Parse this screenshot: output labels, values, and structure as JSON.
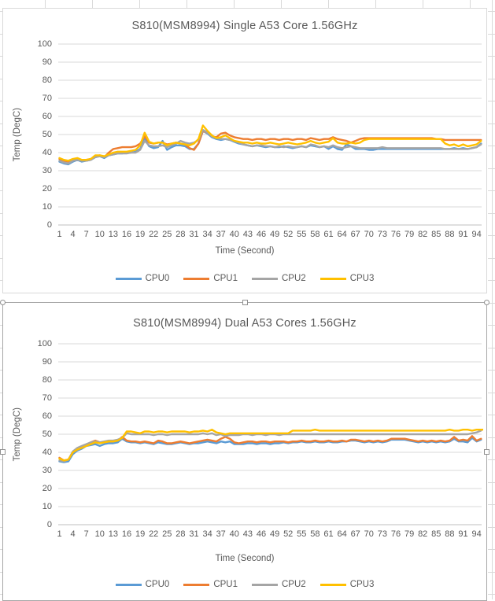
{
  "sheet": {
    "background_color": "#ffffff",
    "gridline_color": "#d9d9d9",
    "chart_border_color": "#d9d9d9",
    "selected_border_color": "#a6a6a6",
    "text_color": "#595959"
  },
  "palette": {
    "cpu0": "#5B9BD5",
    "cpu1": "#ED7D31",
    "cpu2": "#A5A5A5",
    "cpu3": "#FFC000"
  },
  "chart_data": [
    {
      "type": "line",
      "title": "S810(MSM8994) Single A53 Core 1.56GHz",
      "xlabel": "Time (Second)",
      "ylabel": "Temp (DegC)",
      "ylim": [
        0,
        100
      ],
      "ytick_step": 10,
      "ytick_labels": [
        0,
        10,
        20,
        30,
        40,
        50,
        60,
        70,
        80,
        90,
        100
      ],
      "xtick_labels": [
        1,
        4,
        7,
        10,
        13,
        16,
        19,
        22,
        25,
        28,
        31,
        34,
        37,
        40,
        43,
        46,
        49,
        52,
        55,
        58,
        61,
        64,
        67,
        70,
        73,
        76,
        79,
        82,
        85,
        88,
        91,
        94
      ],
      "x_start": 1,
      "x_end": 95,
      "grid": true,
      "legend_position": "bottom",
      "selected": false,
      "series": [
        {
          "name": "CPU0",
          "color": "#5B9BD5",
          "values": [
            35,
            34,
            33.5,
            35,
            36,
            35,
            35.5,
            36,
            37.5,
            38,
            37,
            38.5,
            39,
            39.5,
            39.5,
            40,
            40,
            40.5,
            42,
            47.5,
            43.5,
            42.5,
            43,
            46.5,
            41.5,
            43,
            44,
            44,
            43.5,
            42,
            42,
            45,
            52,
            50.5,
            48.5,
            47.5,
            47,
            47.5,
            47,
            46,
            45,
            44.5,
            44,
            43.5,
            44,
            43.5,
            43,
            43.5,
            43,
            43,
            43.5,
            43,
            42.5,
            43,
            43.5,
            43,
            44,
            43.5,
            43,
            43.5,
            42,
            43.5,
            42,
            41.5,
            44.5,
            43.5,
            42,
            42,
            42,
            41.5,
            41.5,
            42,
            42,
            42,
            42,
            42,
            42,
            42,
            42,
            42,
            42,
            42,
            42,
            42,
            42,
            42,
            42,
            42,
            42.5,
            42,
            42.5,
            42,
            42.5,
            43,
            45
          ]
        },
        {
          "name": "CPU1",
          "color": "#ED7D31",
          "values": [
            36.5,
            35.5,
            35,
            36,
            36.5,
            35.5,
            36,
            36.5,
            38,
            38.5,
            37.5,
            40,
            42,
            42.5,
            43,
            43,
            43,
            43.5,
            45,
            49,
            45.5,
            45,
            45.5,
            45.5,
            44.5,
            45,
            45.5,
            45,
            44.5,
            42.5,
            41.5,
            45,
            52,
            51,
            49,
            48.5,
            50.5,
            51,
            49.5,
            48.5,
            48,
            47.5,
            47.5,
            47,
            47.5,
            47.5,
            47,
            47.5,
            47.5,
            47,
            47.5,
            47.5,
            47,
            47.5,
            47.5,
            47,
            48,
            47.5,
            47,
            47.5,
            47.5,
            48.5,
            47.5,
            47,
            46.5,
            45.5,
            46.5,
            47.5,
            48,
            48,
            48,
            48,
            48,
            48,
            48,
            48,
            48,
            48,
            48,
            48,
            48,
            48,
            48,
            48,
            47.5,
            47.5,
            47,
            47,
            47,
            47,
            47,
            47,
            47,
            47,
            47
          ]
        },
        {
          "name": "CPU2",
          "color": "#A5A5A5",
          "values": [
            35.5,
            34.5,
            34,
            35.5,
            36,
            35.5,
            35.5,
            36,
            37.5,
            38,
            37.5,
            38.5,
            39,
            39.5,
            39.5,
            39.5,
            40,
            40,
            41.5,
            46.5,
            44,
            43.5,
            43.5,
            44,
            43,
            44,
            45,
            46.5,
            45.5,
            45,
            45.5,
            47,
            52.5,
            51,
            49,
            48,
            47.5,
            47.5,
            47,
            46.5,
            45.5,
            44.5,
            44,
            43.5,
            44,
            44,
            43.5,
            43.5,
            43,
            43.5,
            43,
            43.5,
            43,
            43,
            43.5,
            43,
            44.5,
            44,
            43,
            43.5,
            43,
            44,
            43,
            42.5,
            43,
            43.5,
            43,
            42.5,
            42.5,
            42.5,
            42.5,
            42.5,
            43,
            42.5,
            42.5,
            42.5,
            42.5,
            42.5,
            42.5,
            42.5,
            42.5,
            42.5,
            42.5,
            42.5,
            42.5,
            42.5,
            42,
            42,
            42,
            42,
            42,
            42,
            42.5,
            43,
            44.5
          ]
        },
        {
          "name": "CPU3",
          "color": "#FFC000",
          "values": [
            37,
            36,
            35.5,
            36.5,
            37,
            36,
            36,
            36.5,
            38.5,
            38.5,
            38,
            39,
            40,
            40.5,
            40.5,
            40.5,
            41,
            41.5,
            44,
            51,
            46,
            45,
            45.5,
            45.5,
            44,
            45,
            45.5,
            45,
            44.5,
            44,
            45,
            47.5,
            55,
            52,
            49.5,
            48,
            48.5,
            49.5,
            48,
            46.5,
            46,
            45.5,
            45.5,
            45,
            45.5,
            45,
            45,
            45.5,
            45,
            44.5,
            45,
            45.5,
            45,
            44.5,
            45,
            45.5,
            46.5,
            45.5,
            45,
            45.5,
            46,
            48,
            45.5,
            45,
            45,
            45.5,
            45,
            45.5,
            47,
            47.5,
            47.5,
            47.5,
            47.5,
            47.5,
            47.5,
            47.5,
            47.5,
            47.5,
            47.5,
            47.5,
            47.5,
            47.5,
            47.5,
            47.5,
            47.5,
            47.5,
            45,
            44,
            44.5,
            43.5,
            44.5,
            43.5,
            44,
            44.5,
            46.5
          ]
        }
      ]
    },
    {
      "type": "line",
      "title": "S810(MSM8994) Dual A53 Cores 1.56GHz",
      "xlabel": "Time (Second)",
      "ylabel": "Temp (DegC)",
      "ylim": [
        0,
        100
      ],
      "ytick_step": 10,
      "ytick_labels": [
        0,
        10,
        20,
        30,
        40,
        50,
        60,
        70,
        80,
        90,
        100
      ],
      "xtick_labels": [
        1,
        4,
        7,
        10,
        13,
        16,
        19,
        22,
        25,
        28,
        31,
        34,
        37,
        40,
        43,
        46,
        49,
        52,
        55,
        58,
        61,
        64,
        67,
        70,
        73,
        76,
        79,
        82,
        85,
        88,
        91,
        94
      ],
      "x_start": 1,
      "x_end": 95,
      "grid": true,
      "legend_position": "bottom",
      "selected": true,
      "series": [
        {
          "name": "CPU0",
          "color": "#5B9BD5",
          "values": [
            35,
            34.5,
            35,
            39,
            41,
            42,
            43.5,
            44,
            44.5,
            43.5,
            44.5,
            45,
            45,
            45.5,
            47.5,
            46,
            45.5,
            45.5,
            45,
            45.5,
            45,
            44.5,
            45.5,
            45,
            44.5,
            44.5,
            45,
            45.5,
            45,
            44.5,
            45,
            45,
            45.5,
            46,
            45.5,
            45,
            46,
            45.5,
            46,
            44.5,
            44.5,
            44.5,
            45,
            45,
            44.5,
            45,
            45,
            44.5,
            45,
            45,
            45.5,
            45,
            45.5,
            45.5,
            46,
            45.5,
            45.5,
            46,
            45.5,
            45.5,
            46,
            45.5,
            45.5,
            46,
            46,
            46.5,
            46.5,
            46,
            45.5,
            46,
            45.5,
            46,
            45.5,
            46,
            47,
            47,
            47,
            47,
            46.5,
            46,
            45.5,
            46,
            45.5,
            46,
            45.5,
            46,
            45.5,
            46,
            47.5,
            46,
            46,
            45.5,
            48,
            46,
            47
          ]
        },
        {
          "name": "CPU1",
          "color": "#ED7D31",
          "values": [
            37,
            35.5,
            36,
            40,
            42,
            43,
            44,
            45.5,
            46.5,
            45.5,
            45.5,
            46,
            46,
            46.5,
            48.5,
            46.5,
            46,
            46,
            45.5,
            46,
            45.5,
            45,
            46.5,
            46,
            45,
            45,
            45.5,
            46,
            45.5,
            45,
            45.5,
            46,
            46.5,
            47,
            46.5,
            46,
            47.5,
            48.5,
            47.5,
            45.5,
            45,
            45.5,
            46,
            46,
            45.5,
            46,
            46,
            45.5,
            46,
            46,
            46,
            45.5,
            46,
            46,
            46.5,
            46,
            46,
            46.5,
            46,
            46,
            46.5,
            46,
            46,
            46.5,
            46,
            47,
            47,
            46.5,
            46,
            46.5,
            46,
            46.5,
            46,
            46.5,
            47.5,
            47.5,
            47.5,
            47.5,
            47,
            46.5,
            46,
            46.5,
            46,
            46.5,
            46,
            46.5,
            46,
            46.5,
            48.5,
            46.5,
            47,
            46.5,
            49,
            46.5,
            47.5
          ]
        },
        {
          "name": "CPU2",
          "color": "#A5A5A5",
          "values": [
            35.5,
            35,
            36,
            40.5,
            42.5,
            43.5,
            44.5,
            45.5,
            46,
            45.5,
            46,
            46.5,
            46.5,
            47,
            48,
            50.5,
            50,
            50,
            50,
            50,
            50,
            49.5,
            50,
            50,
            49.5,
            50,
            50,
            50,
            50,
            50,
            50,
            50,
            50.5,
            50,
            50.5,
            49.5,
            50,
            49,
            49.5,
            49.5,
            49.5,
            50,
            50,
            49.5,
            50,
            50,
            49.5,
            50,
            50,
            49.5,
            50,
            50,
            50,
            50,
            50,
            50,
            50,
            50,
            50,
            50,
            50,
            50,
            50,
            50,
            50,
            50,
            50,
            50,
            50,
            50,
            50,
            50,
            50,
            50,
            50,
            50,
            50,
            50,
            50,
            50,
            50,
            50,
            50,
            50,
            50,
            50,
            50,
            50,
            50,
            50,
            50,
            50,
            50.5,
            51,
            52
          ]
        },
        {
          "name": "CPU3",
          "color": "#FFC000",
          "values": [
            36.5,
            35.5,
            36,
            40,
            41.5,
            42.5,
            43.5,
            44.5,
            45.5,
            45,
            45.5,
            46,
            46,
            46.5,
            48,
            51.5,
            51.5,
            51,
            50.5,
            51.5,
            51.5,
            51,
            51.5,
            51.5,
            51,
            51.5,
            51.5,
            51.5,
            51.5,
            51,
            51.5,
            51.5,
            52,
            51.5,
            52.5,
            51,
            50.5,
            50,
            50.5,
            50.5,
            50.5,
            50.5,
            50.5,
            50.5,
            50.5,
            50.5,
            50.5,
            50.5,
            50.5,
            50.5,
            50.5,
            50.5,
            52,
            52,
            52,
            52,
            52,
            52.5,
            52,
            52,
            52,
            52,
            52,
            52,
            52,
            52,
            52,
            52,
            52,
            52,
            52,
            52,
            52,
            52,
            52,
            52,
            52,
            52,
            52,
            52,
            52,
            52,
            52,
            52,
            52,
            52,
            52,
            52.5,
            52,
            52,
            52.5,
            52.5,
            52,
            52.5,
            52.5,
            52.5
          ]
        }
      ]
    }
  ]
}
